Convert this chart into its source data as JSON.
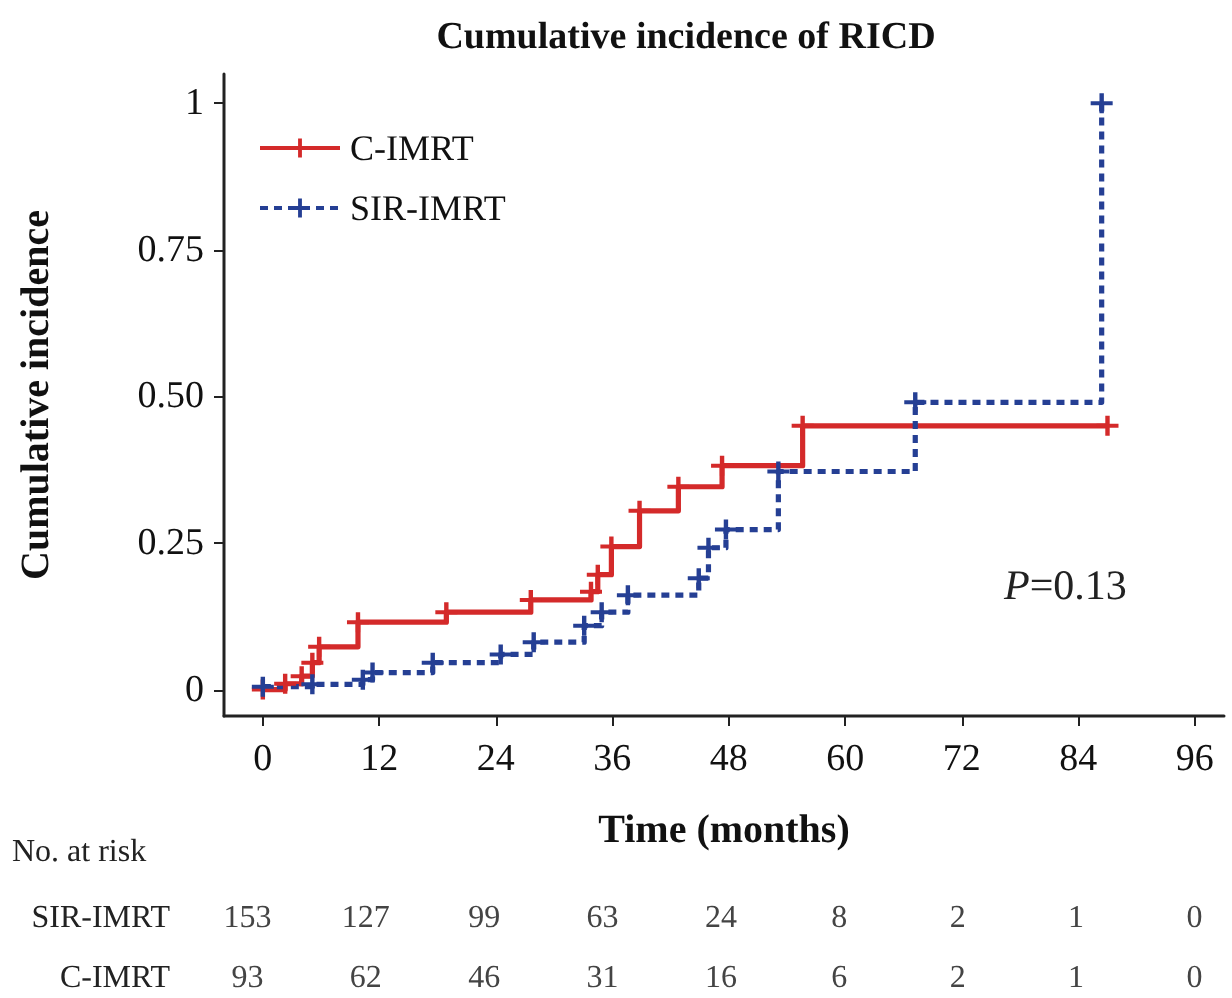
{
  "chart_data": {
    "type": "step",
    "title": "Cumulative incidence of RICD",
    "xlabel": "Time (months)",
    "ylabel": "Cumulative incidence",
    "series": [
      {
        "name": "C-IMRT",
        "color": "#d42a2a",
        "line_style": "solid",
        "x": [
          0,
          2.3,
          4.0,
          5.1,
          5.8,
          9.8,
          18.9,
          27.6,
          33.8,
          34.5,
          35.9,
          38.8,
          42.8,
          47.3,
          55.6,
          87
        ],
        "values": [
          0,
          0.01,
          0.023,
          0.046,
          0.073,
          0.115,
          0.132,
          0.153,
          0.167,
          0.196,
          0.244,
          0.305,
          0.346,
          0.382,
          0.45,
          0.45
        ]
      },
      {
        "name": "SIR-IMRT",
        "color": "#253f94",
        "line_style": "dashed",
        "x": [
          0,
          5.1,
          10.3,
          11.3,
          17.5,
          24.5,
          27.9,
          33.1,
          34.9,
          37.6,
          44.9,
          45.9,
          47.7,
          53.1,
          67.2,
          86.4
        ],
        "values": [
          0.005,
          0.009,
          0.017,
          0.029,
          0.046,
          0.06,
          0.081,
          0.109,
          0.132,
          0.161,
          0.19,
          0.242,
          0.273,
          0.372,
          0.49,
          1
        ]
      }
    ],
    "xlim": [
      -4,
      99
    ],
    "xticks": [
      0,
      12,
      24,
      36,
      48,
      60,
      72,
      84,
      96
    ],
    "ylim": [
      -0.045,
      1.05
    ],
    "yticks": [
      0,
      0.25,
      {
        "value": 0.5,
        "label": "0.50"
      },
      0.75,
      1
    ],
    "grid": false,
    "legend": "top left",
    "marker": "cross",
    "annotations": [
      "P=0.13",
      "No. at risk",
      "SIR-IMRT",
      "153",
      "127",
      "99",
      "63",
      "24",
      "8",
      "2",
      "1",
      "0",
      "C-IMRT",
      "93",
      "62",
      "46",
      "31",
      "16",
      "6",
      "2",
      "1",
      "0"
    ]
  }
}
